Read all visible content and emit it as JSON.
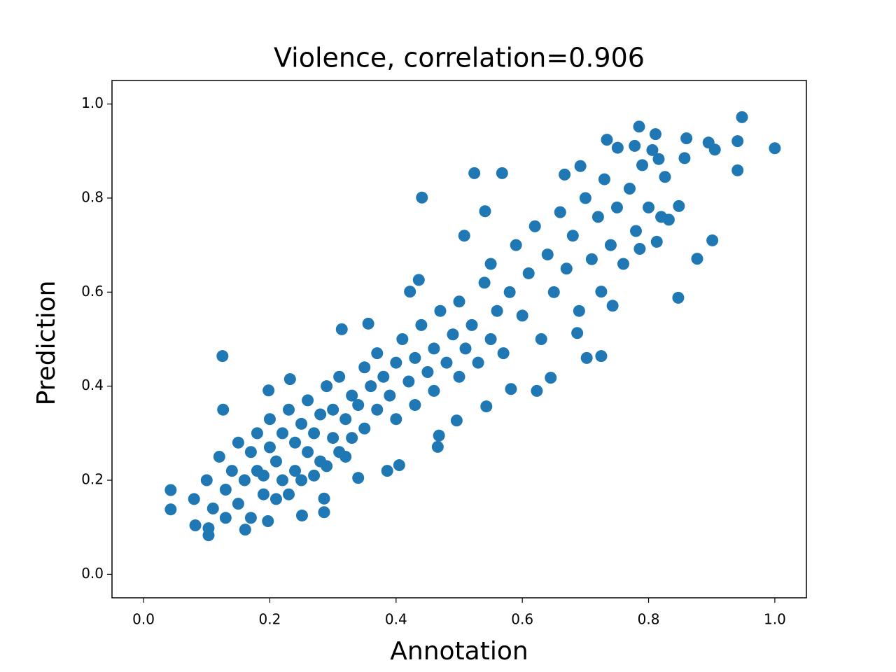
{
  "chart_data": {
    "type": "scatter",
    "title": "Violence, correlation=0.906",
    "xlabel": "Annotation",
    "ylabel": "Prediction",
    "color": "#1f77b4",
    "x": [
      1.0,
      0.948,
      0.941,
      0.941,
      0.895,
      0.905,
      0.901,
      0.877,
      0.847,
      0.86,
      0.857,
      0.785,
      0.811,
      0.806,
      0.816,
      0.778,
      0.734,
      0.751,
      0.692,
      0.667,
      0.524,
      0.568,
      0.441,
      0.541,
      0.508,
      0.314,
      0.125,
      0.126,
      0.043,
      0.043,
      0.082,
      0.103,
      0.103,
      0.286,
      0.286,
      0.251,
      0.161,
      0.702,
      0.725,
      0.687,
      0.645,
      0.623,
      0.743,
      0.725,
      0.786,
      0.813,
      0.826,
      0.848,
      0.832,
      0.466,
      0.468,
      0.496,
      0.543,
      0.582,
      0.405,
      0.386,
      0.34,
      0.197,
      0.198,
      0.232,
      0.422,
      0.436,
      0.356,
      0.1,
      0.12,
      0.13,
      0.14,
      0.15,
      0.16,
      0.17,
      0.18,
      0.18,
      0.19,
      0.2,
      0.2,
      0.21,
      0.22,
      0.22,
      0.23,
      0.24,
      0.24,
      0.25,
      0.26,
      0.26,
      0.27,
      0.28,
      0.28,
      0.29,
      0.3,
      0.3,
      0.31,
      0.31,
      0.32,
      0.33,
      0.33,
      0.34,
      0.35,
      0.35,
      0.36,
      0.37,
      0.37,
      0.38,
      0.39,
      0.4,
      0.4,
      0.41,
      0.42,
      0.43,
      0.43,
      0.44,
      0.45,
      0.46,
      0.46,
      0.47,
      0.48,
      0.49,
      0.5,
      0.5,
      0.51,
      0.52,
      0.53,
      0.54,
      0.55,
      0.55,
      0.56,
      0.57,
      0.58,
      0.59,
      0.6,
      0.61,
      0.62,
      0.63,
      0.64,
      0.65,
      0.66,
      0.67,
      0.68,
      0.69,
      0.7,
      0.71,
      0.72,
      0.73,
      0.74,
      0.75,
      0.76,
      0.77,
      0.78,
      0.79,
      0.8,
      0.82,
      0.08,
      0.11,
      0.13,
      0.15,
      0.17,
      0.19,
      0.21,
      0.23,
      0.25,
      0.27,
      0.29,
      0.32
    ],
    "values": [
      0.906,
      0.972,
      0.921,
      0.859,
      0.918,
      0.903,
      0.71,
      0.671,
      0.588,
      0.927,
      0.885,
      0.952,
      0.936,
      0.902,
      0.883,
      0.911,
      0.924,
      0.907,
      0.868,
      0.85,
      0.853,
      0.853,
      0.801,
      0.772,
      0.72,
      0.521,
      0.464,
      0.35,
      0.179,
      0.138,
      0.104,
      0.083,
      0.098,
      0.132,
      0.161,
      0.125,
      0.095,
      0.46,
      0.464,
      0.513,
      0.418,
      0.39,
      0.571,
      0.601,
      0.692,
      0.707,
      0.845,
      0.783,
      0.754,
      0.271,
      0.295,
      0.327,
      0.357,
      0.394,
      0.232,
      0.22,
      0.205,
      0.113,
      0.391,
      0.415,
      0.601,
      0.626,
      0.533,
      0.2,
      0.25,
      0.18,
      0.22,
      0.28,
      0.2,
      0.26,
      0.3,
      0.22,
      0.17,
      0.27,
      0.33,
      0.24,
      0.3,
      0.2,
      0.35,
      0.28,
      0.22,
      0.32,
      0.26,
      0.37,
      0.3,
      0.24,
      0.34,
      0.4,
      0.29,
      0.35,
      0.26,
      0.42,
      0.33,
      0.38,
      0.29,
      0.36,
      0.44,
      0.31,
      0.4,
      0.35,
      0.47,
      0.42,
      0.38,
      0.45,
      0.33,
      0.5,
      0.41,
      0.46,
      0.36,
      0.53,
      0.43,
      0.48,
      0.39,
      0.56,
      0.45,
      0.51,
      0.42,
      0.58,
      0.48,
      0.53,
      0.45,
      0.62,
      0.5,
      0.66,
      0.56,
      0.47,
      0.6,
      0.7,
      0.55,
      0.64,
      0.74,
      0.5,
      0.68,
      0.6,
      0.77,
      0.65,
      0.72,
      0.56,
      0.8,
      0.67,
      0.76,
      0.84,
      0.7,
      0.78,
      0.66,
      0.82,
      0.73,
      0.87,
      0.78,
      0.76,
      0.16,
      0.14,
      0.12,
      0.15,
      0.12,
      0.21,
      0.16,
      0.17,
      0.2,
      0.21,
      0.23,
      0.25
    ],
    "xlim": [
      -0.05,
      1.05
    ],
    "ylim": [
      -0.05,
      1.05
    ],
    "xticks": [
      {
        "value": 0,
        "label": "0.0"
      },
      0.2,
      0.4,
      0.6,
      0.8,
      {
        "value": 1,
        "label": "1.0"
      }
    ],
    "yticks": [
      {
        "value": 0,
        "label": "0.0"
      },
      0.2,
      0.4,
      0.6,
      0.8,
      {
        "value": 1,
        "label": "1.0"
      }
    ],
    "grid": false
  }
}
